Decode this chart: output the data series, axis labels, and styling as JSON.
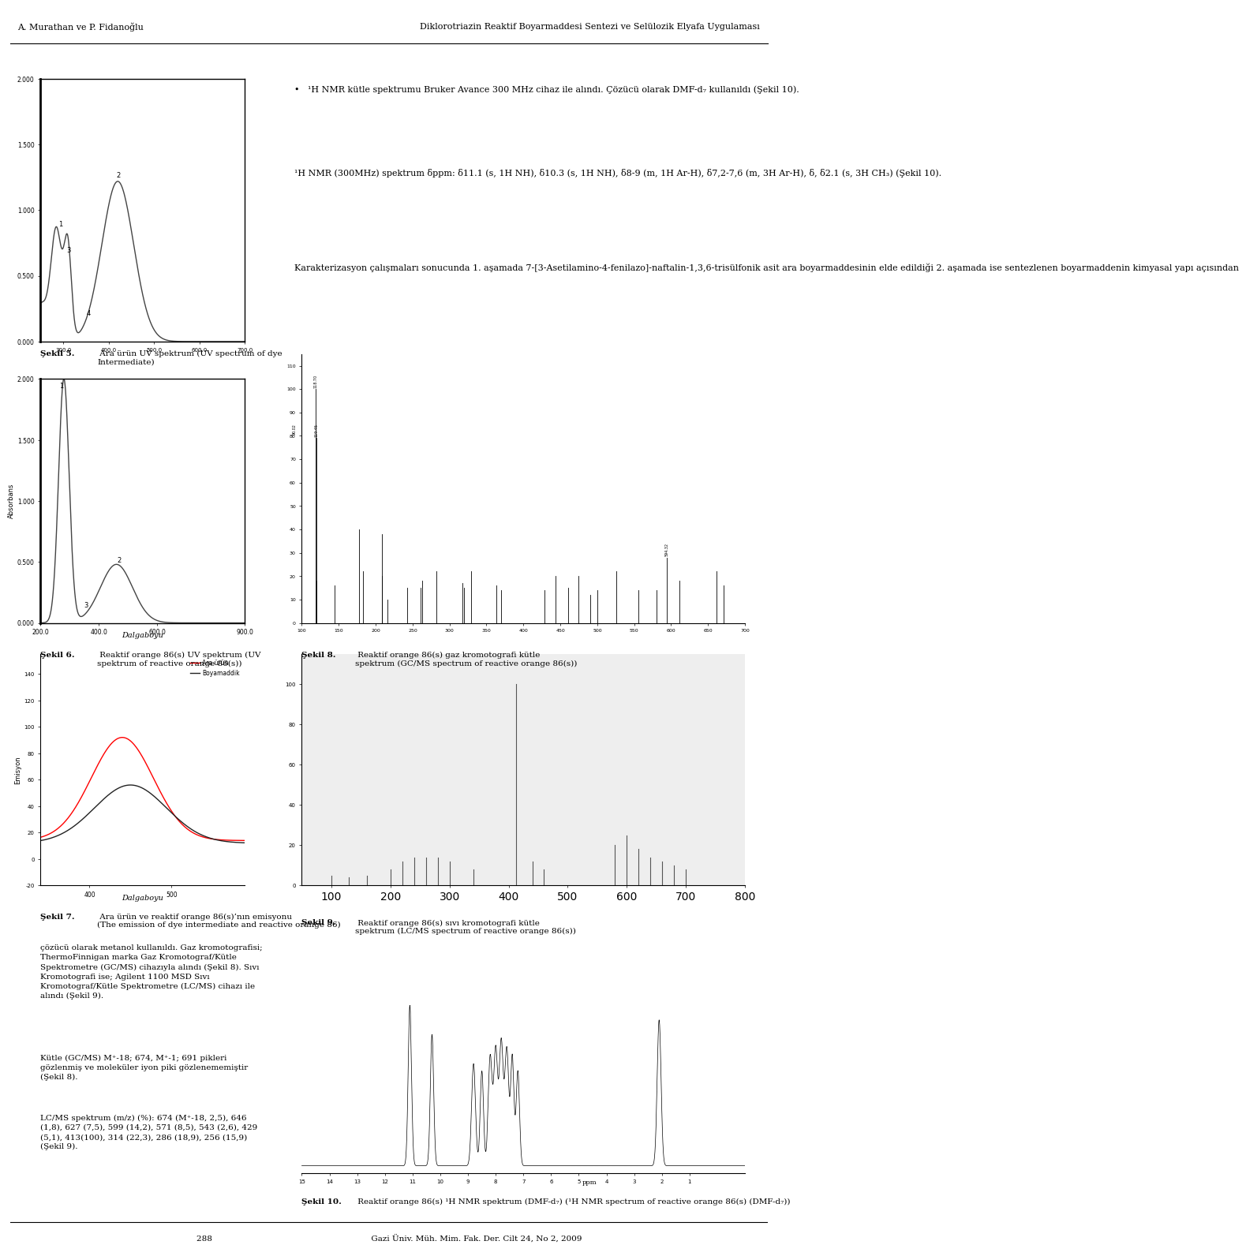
{
  "page_bg": "#ffffff",
  "header_left": "A. Murathan ve P. Fidanoğlu",
  "header_right": "Diklorotriazin Reaktif Boyarmaddesi Sentezi ve Selülozik Elyafa Uygulaması",
  "footer_text": "288                                                              Gazi Üniv. Müh. Mim. Fak. Der. Cilt 24, No 2, 2009",
  "fig5_caption_bold": "Şekil 5.",
  "fig5_caption_rest": " Ara ürün UV spektrum (UV spectrum of dye\nIntermediate)",
  "fig6_caption_bold": "Şekil 6.",
  "fig6_caption_rest": " Reaktif orange 86(s) UV spektrum (UV\nspektrum of reactive orange 86(s))",
  "fig7_caption_bold": "Şekil 7.",
  "fig7_caption_rest": " Ara ürün ve reaktif orange 86(s)’nın emisyonu\n(The emission of dye intermediate and reactive orange 86)",
  "fig8_caption_bold": "Şekil 8.",
  "fig8_caption_rest": " Reaktif orange 86(s) gaz kromotografi kütle\nspektrum (GC/MS spectrum of reactive orange 86(s))",
  "fig9_caption_bold": "Şekil 9.",
  "fig9_caption_rest": " Reaktif orange 86(s) sıvı kromotografi kütle\nspektrum (LC/MS spectrum of reactive orange 86(s))",
  "fig10_caption_bold": "Şekil 10.",
  "fig10_caption_rest": " Reaktif orange 86(s) ¹H NMR spektrum (DMF-d₇) (¹H NMR spectrum of reactive orange 86(s) (DMF-d₇))",
  "right_text1": "•   ¹H NMR kütle spektrumu Bruker Avance 300 MHz cihaz ile alındı. Çözücü olarak DMF-d₇ kullanıldı (Şekil 10).",
  "right_text2": "¹H NMR (300MHz) spektrum δppm: δ11.1 (s, 1H NH), δ10.3 (s, 1H NH), δ8-9 (m, 1H Ar-H), δ7,2-7,6 (m, 3H Ar-H), δ, δ2.1 (s, 3H CH₃) (Şekil 10).",
  "right_text3": "Karakterizasyon çalışmaları sonucunda 1. aşamada 7-[3-Asetilamino-4-fenilazo]-naftalin-1,3,6-trisülfonik asit ara boyarmaddesinin elde edildiği 2. aşamada ise sentezlenen boyarmaddenin kimyasal yapı açısından",
  "left_text_para1": "çözücü olarak metanol kullanıldı. Gaz kromotografisi;\nThermoFinnigan marka Gaz Kromotograf/Kütle\nSpektrometre (GC/MS) cihazıyla alındı (Şekil 8). Sıvı\nKromotografi ise; Agilent 1100 MSD Sıvı\nKromotograf/Kütle Spektrometre (LC/MS) cihazı ile\nalındı (Şekil 9).",
  "left_text_para2": "Kütle (GC/MS) M⁺-18; 674, M⁺-1; 691 pikleri\ngözlenmiş ve moleküler iyon piki gözlenememiştir\n(Şekil 8).",
  "left_text_para3": "LC/MS spektrum (m/z) (%): 674 (M⁺-18, 2,5), 646\n(1,8), 627 (7,5), 599 (14,2), 571 (8,5), 543 (2,6), 429\n(5,1), 413(100), 314 (22,3), 286 (18,9), 256 (15,9)\n(Şekil 9).",
  "legend_ara_urun": "Ara ürün",
  "legend_boyamadde": "Boyamaddik",
  "dalgaboyu": "Dalgaboyu"
}
